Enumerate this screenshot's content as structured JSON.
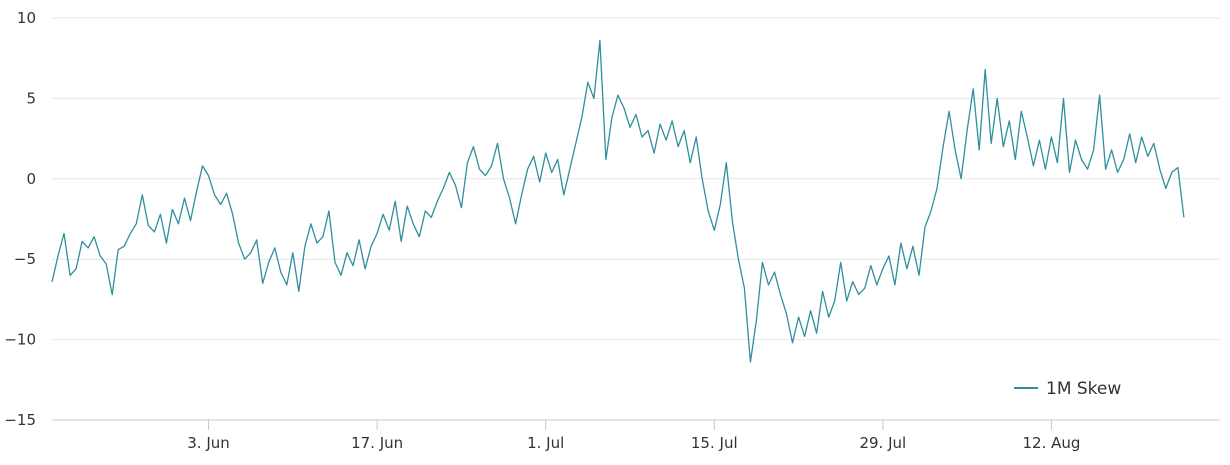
{
  "chart_data": {
    "type": "line",
    "title": "",
    "xlabel": "",
    "ylabel": "",
    "ylim": [
      -15,
      10
    ],
    "xlim": [
      "2024-05-21",
      "2024-08-26"
    ],
    "yticks": [
      10,
      5,
      0,
      -5,
      -10,
      -15
    ],
    "ytick_labels": [
      "10",
      "5",
      "0",
      "−5",
      "−10",
      "−15"
    ],
    "xticks": [
      {
        "date": "2024-06-03",
        "label": "3. Jun"
      },
      {
        "date": "2024-06-17",
        "label": "17. Jun"
      },
      {
        "date": "2024-07-01",
        "label": "1. Jul"
      },
      {
        "date": "2024-07-15",
        "label": "15. Jul"
      },
      {
        "date": "2024-07-29",
        "label": "29. Jul"
      },
      {
        "date": "2024-08-12",
        "label": "12. Aug"
      }
    ],
    "grid": true,
    "legend_position": "bottom-right",
    "series": [
      {
        "name": "1M Skew",
        "color": "#2f8f9d",
        "points": [
          [
            "2024-05-21 00:00",
            -6.4
          ],
          [
            "2024-05-21 12:00",
            -4.8
          ],
          [
            "2024-05-22 00:00",
            -3.4
          ],
          [
            "2024-05-22 12:00",
            -6.0
          ],
          [
            "2024-05-23 00:00",
            -5.6
          ],
          [
            "2024-05-23 12:00",
            -3.9
          ],
          [
            "2024-05-24 00:00",
            -4.3
          ],
          [
            "2024-05-24 12:00",
            -3.6
          ],
          [
            "2024-05-25 00:00",
            -4.8
          ],
          [
            "2024-05-25 12:00",
            -5.3
          ],
          [
            "2024-05-26 00:00",
            -7.2
          ],
          [
            "2024-05-26 12:00",
            -4.4
          ],
          [
            "2024-05-27 00:00",
            -4.2
          ],
          [
            "2024-05-27 12:00",
            -3.4
          ],
          [
            "2024-05-28 00:00",
            -2.8
          ],
          [
            "2024-05-28 12:00",
            -1.0
          ],
          [
            "2024-05-29 00:00",
            -2.9
          ],
          [
            "2024-05-29 12:00",
            -3.3
          ],
          [
            "2024-05-30 00:00",
            -2.2
          ],
          [
            "2024-05-30 12:00",
            -4.0
          ],
          [
            "2024-05-31 00:00",
            -1.9
          ],
          [
            "2024-05-31 12:00",
            -2.8
          ],
          [
            "2024-06-01 00:00",
            -1.2
          ],
          [
            "2024-06-01 12:00",
            -2.6
          ],
          [
            "2024-06-02 00:00",
            -0.8
          ],
          [
            "2024-06-02 12:00",
            0.8
          ],
          [
            "2024-06-03 00:00",
            0.2
          ],
          [
            "2024-06-03 12:00",
            -1.0
          ],
          [
            "2024-06-04 00:00",
            -1.6
          ],
          [
            "2024-06-04 12:00",
            -0.9
          ],
          [
            "2024-06-05 00:00",
            -2.2
          ],
          [
            "2024-06-05 12:00",
            -4.0
          ],
          [
            "2024-06-06 00:00",
            -5.0
          ],
          [
            "2024-06-06 12:00",
            -4.6
          ],
          [
            "2024-06-07 00:00",
            -3.8
          ],
          [
            "2024-06-07 12:00",
            -6.5
          ],
          [
            "2024-06-08 00:00",
            -5.2
          ],
          [
            "2024-06-08 12:00",
            -4.3
          ],
          [
            "2024-06-09 00:00",
            -5.8
          ],
          [
            "2024-06-09 12:00",
            -6.6
          ],
          [
            "2024-06-10 00:00",
            -4.6
          ],
          [
            "2024-06-10 12:00",
            -7.0
          ],
          [
            "2024-06-11 00:00",
            -4.2
          ],
          [
            "2024-06-11 12:00",
            -2.8
          ],
          [
            "2024-06-12 00:00",
            -4.0
          ],
          [
            "2024-06-12 12:00",
            -3.6
          ],
          [
            "2024-06-13 00:00",
            -2.0
          ],
          [
            "2024-06-13 12:00",
            -5.2
          ],
          [
            "2024-06-14 00:00",
            -6.0
          ],
          [
            "2024-06-14 12:00",
            -4.6
          ],
          [
            "2024-06-15 00:00",
            -5.4
          ],
          [
            "2024-06-15 12:00",
            -3.8
          ],
          [
            "2024-06-16 00:00",
            -5.6
          ],
          [
            "2024-06-16 12:00",
            -4.2
          ],
          [
            "2024-06-17 00:00",
            -3.4
          ],
          [
            "2024-06-17 12:00",
            -2.2
          ],
          [
            "2024-06-18 00:00",
            -3.2
          ],
          [
            "2024-06-18 12:00",
            -1.4
          ],
          [
            "2024-06-19 00:00",
            -3.9
          ],
          [
            "2024-06-19 12:00",
            -1.7
          ],
          [
            "2024-06-20 00:00",
            -2.8
          ],
          [
            "2024-06-20 12:00",
            -3.6
          ],
          [
            "2024-06-21 00:00",
            -2.0
          ],
          [
            "2024-06-21 12:00",
            -2.4
          ],
          [
            "2024-06-22 00:00",
            -1.4
          ],
          [
            "2024-06-22 12:00",
            -0.6
          ],
          [
            "2024-06-23 00:00",
            0.4
          ],
          [
            "2024-06-23 12:00",
            -0.4
          ],
          [
            "2024-06-24 00:00",
            -1.8
          ],
          [
            "2024-06-24 12:00",
            1.0
          ],
          [
            "2024-06-25 00:00",
            2.0
          ],
          [
            "2024-06-25 12:00",
            0.6
          ],
          [
            "2024-06-26 00:00",
            0.2
          ],
          [
            "2024-06-26 12:00",
            0.8
          ],
          [
            "2024-06-27 00:00",
            2.2
          ],
          [
            "2024-06-27 12:00",
            0.0
          ],
          [
            "2024-06-28 00:00",
            -1.2
          ],
          [
            "2024-06-28 12:00",
            -2.8
          ],
          [
            "2024-06-29 00:00",
            -1.0
          ],
          [
            "2024-06-29 12:00",
            0.6
          ],
          [
            "2024-06-30 00:00",
            1.4
          ],
          [
            "2024-06-30 12:00",
            -0.2
          ],
          [
            "2024-07-01 00:00",
            1.6
          ],
          [
            "2024-07-01 12:00",
            0.4
          ],
          [
            "2024-07-02 00:00",
            1.2
          ],
          [
            "2024-07-02 12:00",
            -1.0
          ],
          [
            "2024-07-03 00:00",
            0.6
          ],
          [
            "2024-07-03 12:00",
            2.2
          ],
          [
            "2024-07-04 00:00",
            3.8
          ],
          [
            "2024-07-04 12:00",
            6.0
          ],
          [
            "2024-07-05 00:00",
            5.0
          ],
          [
            "2024-07-05 12:00",
            8.6
          ],
          [
            "2024-07-06 00:00",
            1.2
          ],
          [
            "2024-07-06 12:00",
            3.8
          ],
          [
            "2024-07-07 00:00",
            5.2
          ],
          [
            "2024-07-07 12:00",
            4.4
          ],
          [
            "2024-07-08 00:00",
            3.2
          ],
          [
            "2024-07-08 12:00",
            4.0
          ],
          [
            "2024-07-09 00:00",
            2.6
          ],
          [
            "2024-07-09 12:00",
            3.0
          ],
          [
            "2024-07-10 00:00",
            1.6
          ],
          [
            "2024-07-10 12:00",
            3.4
          ],
          [
            "2024-07-11 00:00",
            2.4
          ],
          [
            "2024-07-11 12:00",
            3.6
          ],
          [
            "2024-07-12 00:00",
            2.0
          ],
          [
            "2024-07-12 12:00",
            3.0
          ],
          [
            "2024-07-13 00:00",
            1.0
          ],
          [
            "2024-07-13 12:00",
            2.6
          ],
          [
            "2024-07-14 00:00",
            0.0
          ],
          [
            "2024-07-14 12:00",
            -2.0
          ],
          [
            "2024-07-15 00:00",
            -3.2
          ],
          [
            "2024-07-15 12:00",
            -1.6
          ],
          [
            "2024-07-16 00:00",
            1.0
          ],
          [
            "2024-07-16 12:00",
            -2.6
          ],
          [
            "2024-07-17 00:00",
            -5.0
          ],
          [
            "2024-07-17 12:00",
            -6.8
          ],
          [
            "2024-07-18 00:00",
            -11.4
          ],
          [
            "2024-07-18 12:00",
            -8.8
          ],
          [
            "2024-07-19 00:00",
            -5.2
          ],
          [
            "2024-07-19 12:00",
            -6.6
          ],
          [
            "2024-07-20 00:00",
            -5.8
          ],
          [
            "2024-07-20 12:00",
            -7.2
          ],
          [
            "2024-07-21 00:00",
            -8.4
          ],
          [
            "2024-07-21 12:00",
            -10.2
          ],
          [
            "2024-07-22 00:00",
            -8.6
          ],
          [
            "2024-07-22 12:00",
            -9.8
          ],
          [
            "2024-07-23 00:00",
            -8.2
          ],
          [
            "2024-07-23 12:00",
            -9.6
          ],
          [
            "2024-07-24 00:00",
            -7.0
          ],
          [
            "2024-07-24 12:00",
            -8.6
          ],
          [
            "2024-07-25 00:00",
            -7.6
          ],
          [
            "2024-07-25 12:00",
            -5.2
          ],
          [
            "2024-07-26 00:00",
            -7.6
          ],
          [
            "2024-07-26 12:00",
            -6.4
          ],
          [
            "2024-07-27 00:00",
            -7.2
          ],
          [
            "2024-07-27 12:00",
            -6.8
          ],
          [
            "2024-07-28 00:00",
            -5.4
          ],
          [
            "2024-07-28 12:00",
            -6.6
          ],
          [
            "2024-07-29 00:00",
            -5.6
          ],
          [
            "2024-07-29 12:00",
            -4.8
          ],
          [
            "2024-07-30 00:00",
            -6.6
          ],
          [
            "2024-07-30 12:00",
            -4.0
          ],
          [
            "2024-07-31 00:00",
            -5.6
          ],
          [
            "2024-07-31 12:00",
            -4.2
          ],
          [
            "2024-08-01 00:00",
            -6.0
          ],
          [
            "2024-08-01 12:00",
            -3.0
          ],
          [
            "2024-08-02 00:00",
            -2.0
          ],
          [
            "2024-08-02 12:00",
            -0.6
          ],
          [
            "2024-08-03 00:00",
            2.0
          ],
          [
            "2024-08-03 12:00",
            4.2
          ],
          [
            "2024-08-04 00:00",
            1.8
          ],
          [
            "2024-08-04 12:00",
            0.0
          ],
          [
            "2024-08-05 00:00",
            3.0
          ],
          [
            "2024-08-05 12:00",
            5.6
          ],
          [
            "2024-08-06 00:00",
            1.8
          ],
          [
            "2024-08-06 12:00",
            6.8
          ],
          [
            "2024-08-07 00:00",
            2.2
          ],
          [
            "2024-08-07 12:00",
            5.0
          ],
          [
            "2024-08-08 00:00",
            2.0
          ],
          [
            "2024-08-08 12:00",
            3.6
          ],
          [
            "2024-08-09 00:00",
            1.2
          ],
          [
            "2024-08-09 12:00",
            4.2
          ],
          [
            "2024-08-10 00:00",
            2.6
          ],
          [
            "2024-08-10 12:00",
            0.8
          ],
          [
            "2024-08-11 00:00",
            2.4
          ],
          [
            "2024-08-11 12:00",
            0.6
          ],
          [
            "2024-08-12 00:00",
            2.6
          ],
          [
            "2024-08-12 12:00",
            1.0
          ],
          [
            "2024-08-13 00:00",
            5.0
          ],
          [
            "2024-08-13 12:00",
            0.4
          ],
          [
            "2024-08-14 00:00",
            2.4
          ],
          [
            "2024-08-14 12:00",
            1.2
          ],
          [
            "2024-08-15 00:00",
            0.6
          ],
          [
            "2024-08-15 12:00",
            1.8
          ],
          [
            "2024-08-16 00:00",
            5.2
          ],
          [
            "2024-08-16 12:00",
            0.6
          ],
          [
            "2024-08-17 00:00",
            1.8
          ],
          [
            "2024-08-17 12:00",
            0.4
          ],
          [
            "2024-08-18 00:00",
            1.2
          ],
          [
            "2024-08-18 12:00",
            2.8
          ],
          [
            "2024-08-19 00:00",
            1.0
          ],
          [
            "2024-08-19 12:00",
            2.6
          ],
          [
            "2024-08-20 00:00",
            1.4
          ],
          [
            "2024-08-20 12:00",
            2.2
          ],
          [
            "2024-08-21 00:00",
            0.6
          ],
          [
            "2024-08-21 12:00",
            -0.6
          ],
          [
            "2024-08-22 00:00",
            0.4
          ],
          [
            "2024-08-22 12:00",
            0.7
          ],
          [
            "2024-08-23 00:00",
            -2.4
          ]
        ]
      }
    ]
  }
}
